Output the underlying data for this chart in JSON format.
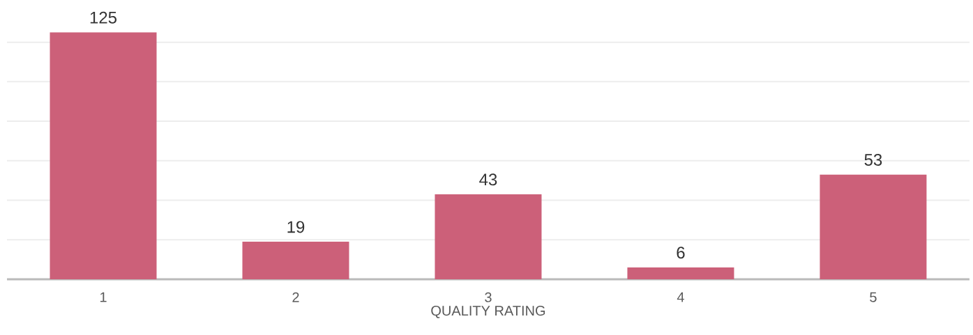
{
  "chart_data": {
    "type": "bar",
    "xlabel": "QUALITY RATING",
    "categories": [
      "1",
      "2",
      "3",
      "4",
      "5"
    ],
    "values": [
      125,
      19,
      43,
      6,
      53
    ],
    "color": "#cc6079",
    "data_labels": true,
    "grid": "y",
    "tick_labels": "x"
  }
}
